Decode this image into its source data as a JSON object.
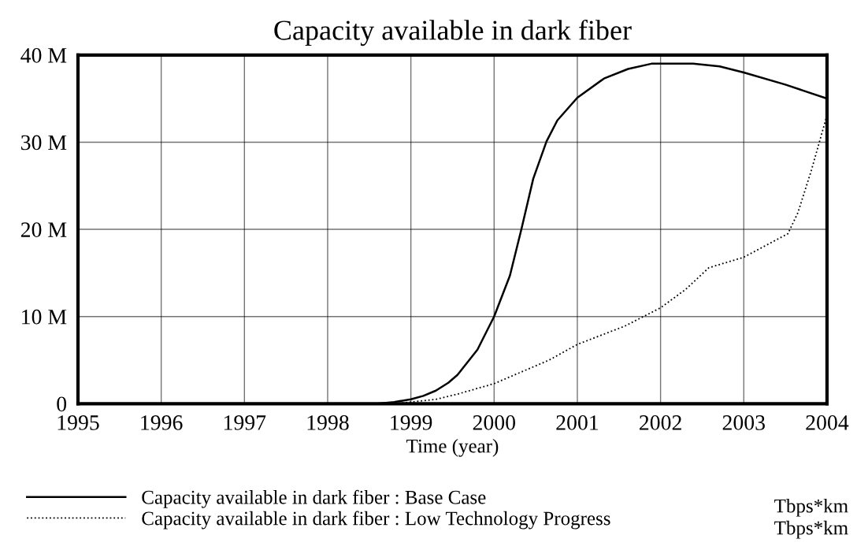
{
  "chart_data": {
    "type": "line",
    "title": "Capacity available in dark fiber",
    "xlabel": "Time (year)",
    "x": [
      1995,
      1998.6,
      1998.8,
      1999,
      1999.15,
      1999.3,
      1999.45,
      1999.56,
      1999.8,
      2000,
      2000.19,
      2000.33,
      2000.47,
      2000.63,
      2000.76,
      2001,
      2001.32,
      2001.61,
      2001.89,
      2002.39,
      2002.71,
      2003,
      2003.5,
      2004
    ],
    "series": [
      {
        "name": "Capacity available in dark fiber : Base Case",
        "color": "#000000",
        "line_style": "solid",
        "values": [
          0,
          0,
          0.2,
          0.5,
          0.9,
          1.5,
          2.4,
          3.3,
          6.2,
          10,
          14.7,
          20.1,
          25.8,
          30.1,
          32.5,
          35.1,
          37.3,
          38.4,
          39,
          39,
          38.7,
          38,
          36.6,
          35
        ]
      },
      {
        "name": "Capacity available in dark fiber : Low Technology Progress",
        "color": "#000000",
        "line_style": "dotted",
        "x": [
          1995,
          1998.8,
          1999,
          1999.3,
          1999.56,
          2000,
          2000.66,
          2001,
          2001.57,
          2002,
          2002.3,
          2002.58,
          2003,
          2003.53,
          2003.65,
          2003.81,
          2004
        ],
        "values": [
          0,
          0,
          0.2,
          0.5,
          1.1,
          2.3,
          5,
          6.8,
          8.9,
          11,
          13.1,
          15.6,
          16.8,
          19.5,
          21.9,
          26.7,
          33.1
        ]
      }
    ],
    "xlim": [
      1995,
      2004
    ],
    "xticks": [
      1995,
      1996,
      1997,
      1998,
      1999,
      2000,
      2001,
      2002,
      2003,
      2004
    ],
    "ylim": [
      0,
      40
    ],
    "yticks": [
      0,
      {
        "value": 10,
        "label": "10 M"
      },
      {
        "value": 20,
        "label": "20 M"
      },
      {
        "value": 30,
        "label": "30 M"
      },
      {
        "value": 40,
        "label": "40 M"
      }
    ],
    "grid": true,
    "legend": "bottom",
    "marker": "none",
    "annotations": [
      "Tbps*km",
      "Tbps*km"
    ]
  }
}
